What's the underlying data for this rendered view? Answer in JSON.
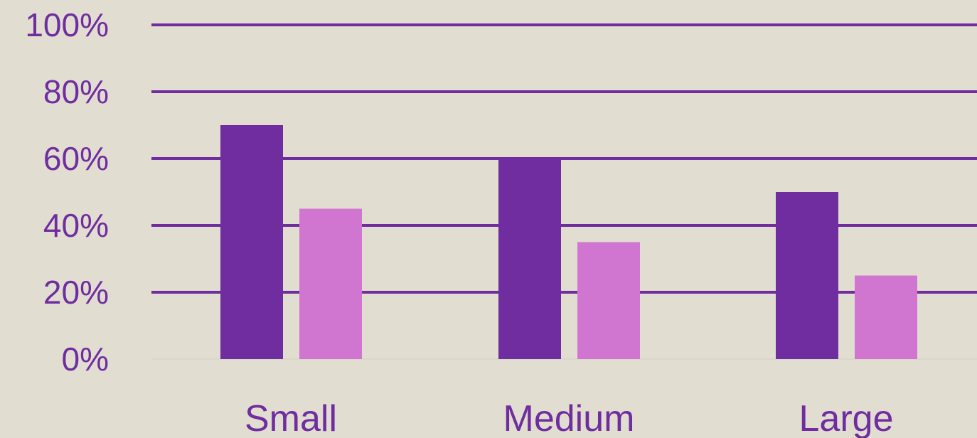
{
  "colors": {
    "background": "#E1DDD0",
    "gridline": "#6F2DA0",
    "baseline": "#D9D6CB",
    "text": "#6F2DA0"
  },
  "chart_data": {
    "type": "bar",
    "categories": [
      "Small",
      "Medium",
      "Large"
    ],
    "series": [
      {
        "color": "#6F2DA0",
        "values": [
          70,
          60,
          50
        ]
      },
      {
        "color": "#D176D0",
        "values": [
          45,
          35,
          25
        ]
      }
    ],
    "ylim": [
      0,
      100
    ],
    "yticks": [
      0,
      20,
      40,
      60,
      80,
      100
    ],
    "ytick_labels": [
      "0%",
      "20%",
      "40%",
      "60%",
      "80%",
      "100%"
    ],
    "grid": true,
    "legend": "none"
  }
}
